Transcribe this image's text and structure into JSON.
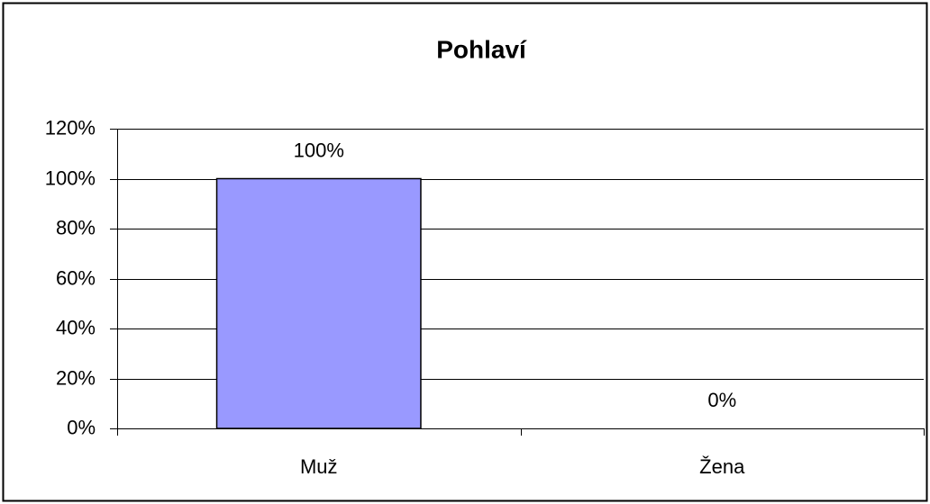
{
  "chart_data": {
    "type": "bar",
    "title": "Pohlaví",
    "categories": [
      "Muž",
      "Žena"
    ],
    "values": [
      100,
      0
    ],
    "value_labels": [
      "100%",
      "0%"
    ],
    "color": "#9999ff",
    "ylim": [
      0,
      120
    ],
    "yticks": [
      {
        "value": 0,
        "label": "0%"
      },
      {
        "value": 20,
        "label": "20%"
      },
      {
        "value": 40,
        "label": "40%"
      },
      {
        "value": 60,
        "label": "60%"
      },
      {
        "value": 80,
        "label": "80%"
      },
      {
        "value": 100,
        "label": "100%"
      },
      {
        "value": 120,
        "label": "120%"
      }
    ],
    "grid": true
  }
}
